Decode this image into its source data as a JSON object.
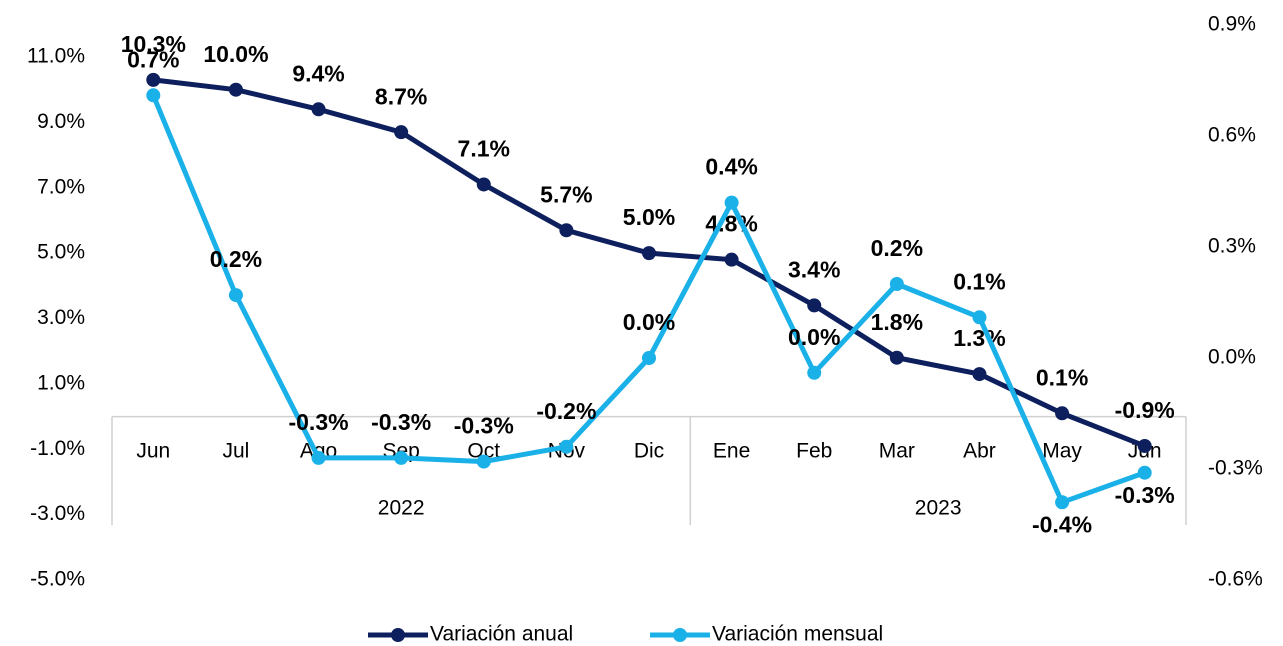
{
  "chart_data": {
    "type": "line",
    "categories": [
      "Jun",
      "Jul",
      "Ago",
      "Sep",
      "Oct",
      "Nov",
      "Dic",
      "Ene",
      "Feb",
      "Mar",
      "Abr",
      "May",
      "Jun"
    ],
    "x_groups": [
      {
        "label": "2022",
        "span": 7
      },
      {
        "label": "2023",
        "span": 6
      }
    ],
    "series": [
      {
        "name": "Variación anual",
        "color": "#0d1f5c",
        "values": [
          10.3,
          10.0,
          9.4,
          8.7,
          7.1,
          5.7,
          5.0,
          4.8,
          3.4,
          1.8,
          1.3,
          0.1,
          -0.9
        ],
        "value_labels": [
          "10.3%",
          "10.0%",
          "9.4%",
          "8.7%",
          "7.1%",
          "5.7%",
          "5.0%",
          "4.8%",
          "3.4%",
          "1.8%",
          "1.3%",
          "0.1%",
          "-0.9%"
        ]
      },
      {
        "name": "Variación mensual",
        "color": "#1ab0e8",
        "axis": "y2",
        "values": [
          0.71,
          0.17,
          -0.27,
          -0.27,
          -0.28,
          -0.24,
          0.0,
          0.42,
          -0.04,
          0.2,
          0.11,
          -0.39,
          -0.31
        ],
        "value_labels": [
          "0.7%",
          "0.2%",
          "-0.3%",
          "-0.3%",
          "-0.3%",
          "-0.2%",
          "0.0%",
          "0.4%",
          "0.0%",
          "0.2%",
          "0.1%",
          "-0.4%",
          "-0.3%"
        ]
      }
    ],
    "ylim": [
      -5,
      11
    ],
    "yticks": [
      {
        "value": -5,
        "label": "-5.0%"
      },
      {
        "value": -3,
        "label": "-3.0%"
      },
      {
        "value": -1,
        "label": "-1.0%"
      },
      {
        "value": 1,
        "label": "1.0%"
      },
      {
        "value": 3,
        "label": "3.0%"
      },
      {
        "value": 5,
        "label": "5.0%"
      },
      {
        "value": 7,
        "label": "7.0%"
      },
      {
        "value": 9,
        "label": "9.0%"
      },
      {
        "value": 11,
        "label": "11.0%"
      }
    ],
    "y2lim": [
      -0.6,
      0.9
    ],
    "y2ticks": [
      {
        "value": -0.6,
        "label": "-0.6%"
      },
      {
        "value": -0.3,
        "label": "-0.3%"
      },
      {
        "value": 0,
        "label": "0.0%"
      },
      {
        "value": 0.3,
        "label": "0.3%"
      },
      {
        "value": 0.6,
        "label": "0.6%"
      },
      {
        "value": 0.9,
        "label": "0.9%"
      }
    ],
    "legend": "bottom"
  }
}
